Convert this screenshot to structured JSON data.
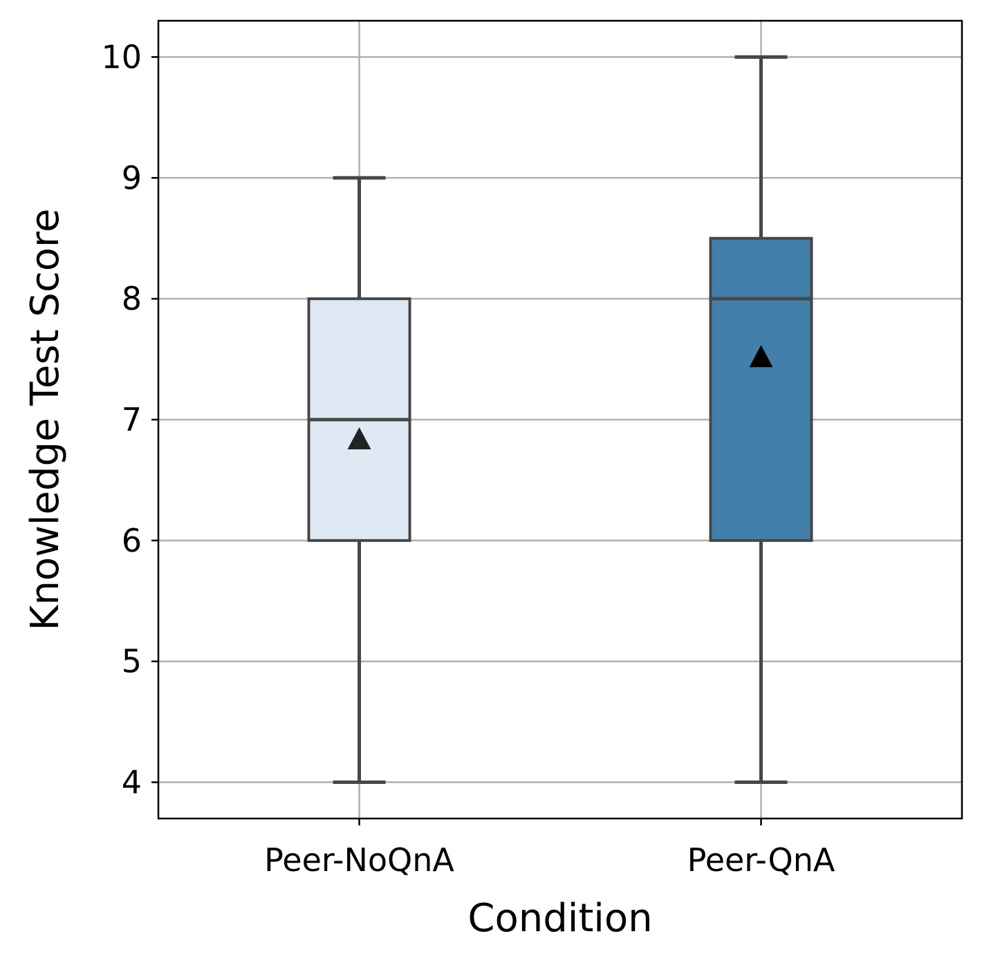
{
  "chart_data": {
    "type": "boxplot",
    "title": "",
    "xlabel": "Condition",
    "ylabel": "Knowledge Test Score",
    "categories": [
      "Peer-NoQnA",
      "Peer-QnA"
    ],
    "ylim": [
      3.7,
      10.3
    ],
    "yticks": [
      4,
      5,
      6,
      7,
      8,
      9,
      10
    ],
    "ytick_labels": [
      "4",
      "5",
      "6",
      "7",
      "8",
      "9",
      "10"
    ],
    "grid": true,
    "boxes": [
      {
        "name": "Peer-NoQnA",
        "whisker_low": 4,
        "q1": 6,
        "median": 7,
        "q3": 8,
        "whisker_high": 9,
        "mean": 6.84,
        "color": "#dfe9f3"
      },
      {
        "name": "Peer-QnA",
        "whisker_low": 4,
        "q1": 6,
        "median": 8,
        "q3": 8.5,
        "whisker_high": 10,
        "mean": 7.52,
        "color": "#437fab"
      }
    ],
    "line_color": "#474747",
    "mean_marker": "triangle",
    "mean_marker_color": "#000000"
  }
}
